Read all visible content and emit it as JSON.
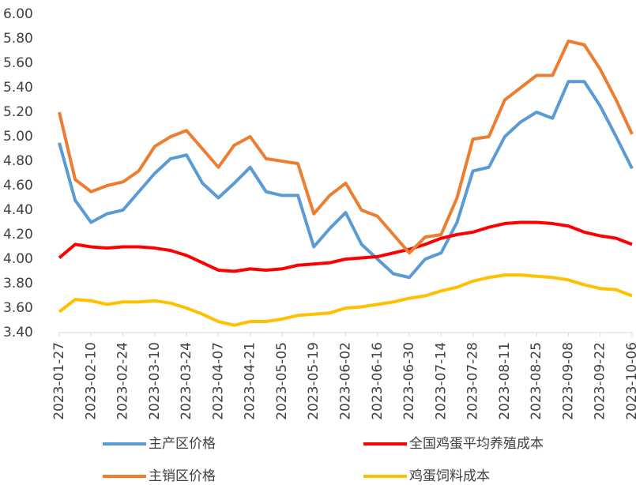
{
  "chart_data": {
    "type": "line",
    "categories": [
      "2023-01-27",
      null,
      "2023-02-10",
      null,
      "2023-02-24",
      null,
      "2023-03-10",
      null,
      "2023-03-24",
      null,
      "2023-04-07",
      null,
      "2023-04-21",
      null,
      "2023-05-05",
      null,
      "2023-05-19",
      null,
      "2023-06-02",
      null,
      "2023-06-16",
      null,
      "2023-06-30",
      null,
      "2023-07-14",
      null,
      "2023-07-28",
      null,
      "2023-08-11",
      null,
      "2023-08-25",
      null,
      "2023-09-08",
      null,
      "2023-09-22",
      null,
      "2023-10-06"
    ],
    "series": [
      {
        "name": "主产区价格",
        "color": "#5b9bd5",
        "values": [
          4.95,
          4.48,
          4.3,
          4.37,
          4.4,
          4.55,
          4.7,
          4.82,
          4.85,
          4.62,
          4.5,
          4.62,
          4.75,
          4.55,
          4.52,
          4.52,
          4.1,
          4.25,
          4.38,
          4.12,
          4.0,
          3.88,
          3.85,
          4.0,
          4.05,
          4.3,
          4.72,
          4.75,
          5.0,
          5.12,
          5.2,
          5.15,
          5.45,
          5.45,
          5.25,
          5.0,
          4.74
        ]
      },
      {
        "name": "全国鸡蛋平均养殖成本",
        "color": "#ff0000",
        "values": [
          4.01,
          4.12,
          4.1,
          4.09,
          4.1,
          4.1,
          4.09,
          4.07,
          4.03,
          3.97,
          3.91,
          3.9,
          3.92,
          3.91,
          3.92,
          3.95,
          3.96,
          3.97,
          4.0,
          4.01,
          4.02,
          4.05,
          4.08,
          4.12,
          4.17,
          4.2,
          4.22,
          4.26,
          4.29,
          4.3,
          4.3,
          4.29,
          4.27,
          4.22,
          4.19,
          4.17,
          4.12
        ]
      },
      {
        "name": "主销区价格",
        "color": "#ed7d31",
        "values": [
          5.2,
          4.65,
          4.55,
          4.6,
          4.63,
          4.72,
          4.92,
          5.0,
          5.05,
          4.9,
          4.75,
          4.93,
          5.0,
          4.82,
          4.8,
          4.78,
          4.37,
          4.52,
          4.62,
          4.4,
          4.35,
          4.2,
          4.05,
          4.18,
          4.2,
          4.5,
          4.98,
          5.0,
          5.3,
          5.4,
          5.5,
          5.5,
          5.78,
          5.75,
          5.55,
          5.3,
          5.02
        ]
      },
      {
        "name": "鸡蛋饲料成本",
        "color": "#ffc000",
        "values": [
          3.57,
          3.67,
          3.66,
          3.63,
          3.65,
          3.65,
          3.66,
          3.64,
          3.6,
          3.55,
          3.49,
          3.46,
          3.49,
          3.49,
          3.51,
          3.54,
          3.55,
          3.56,
          3.6,
          3.61,
          3.63,
          3.65,
          3.68,
          3.7,
          3.74,
          3.77,
          3.82,
          3.85,
          3.87,
          3.87,
          3.86,
          3.85,
          3.83,
          3.79,
          3.76,
          3.75,
          3.7
        ]
      }
    ],
    "ylim": [
      3.4,
      6.0
    ],
    "yticks": [
      {
        "value": 3.4,
        "label": "3.40"
      },
      {
        "value": 3.6,
        "label": "3.60"
      },
      {
        "value": 3.8,
        "label": "3.80"
      },
      {
        "value": 4.0,
        "label": "4.00"
      },
      {
        "value": 4.2,
        "label": "4.20"
      },
      {
        "value": 4.4,
        "label": "4.40"
      },
      {
        "value": 4.6,
        "label": "4.60"
      },
      {
        "value": 4.8,
        "label": "4.80"
      },
      {
        "value": 5.0,
        "label": "5.00"
      },
      {
        "value": 5.2,
        "label": "5.20"
      },
      {
        "value": 5.4,
        "label": "5.40"
      },
      {
        "value": 5.6,
        "label": "5.60"
      },
      {
        "value": 5.8,
        "label": "5.80"
      },
      {
        "value": 6.0,
        "label": "6.00"
      }
    ]
  }
}
